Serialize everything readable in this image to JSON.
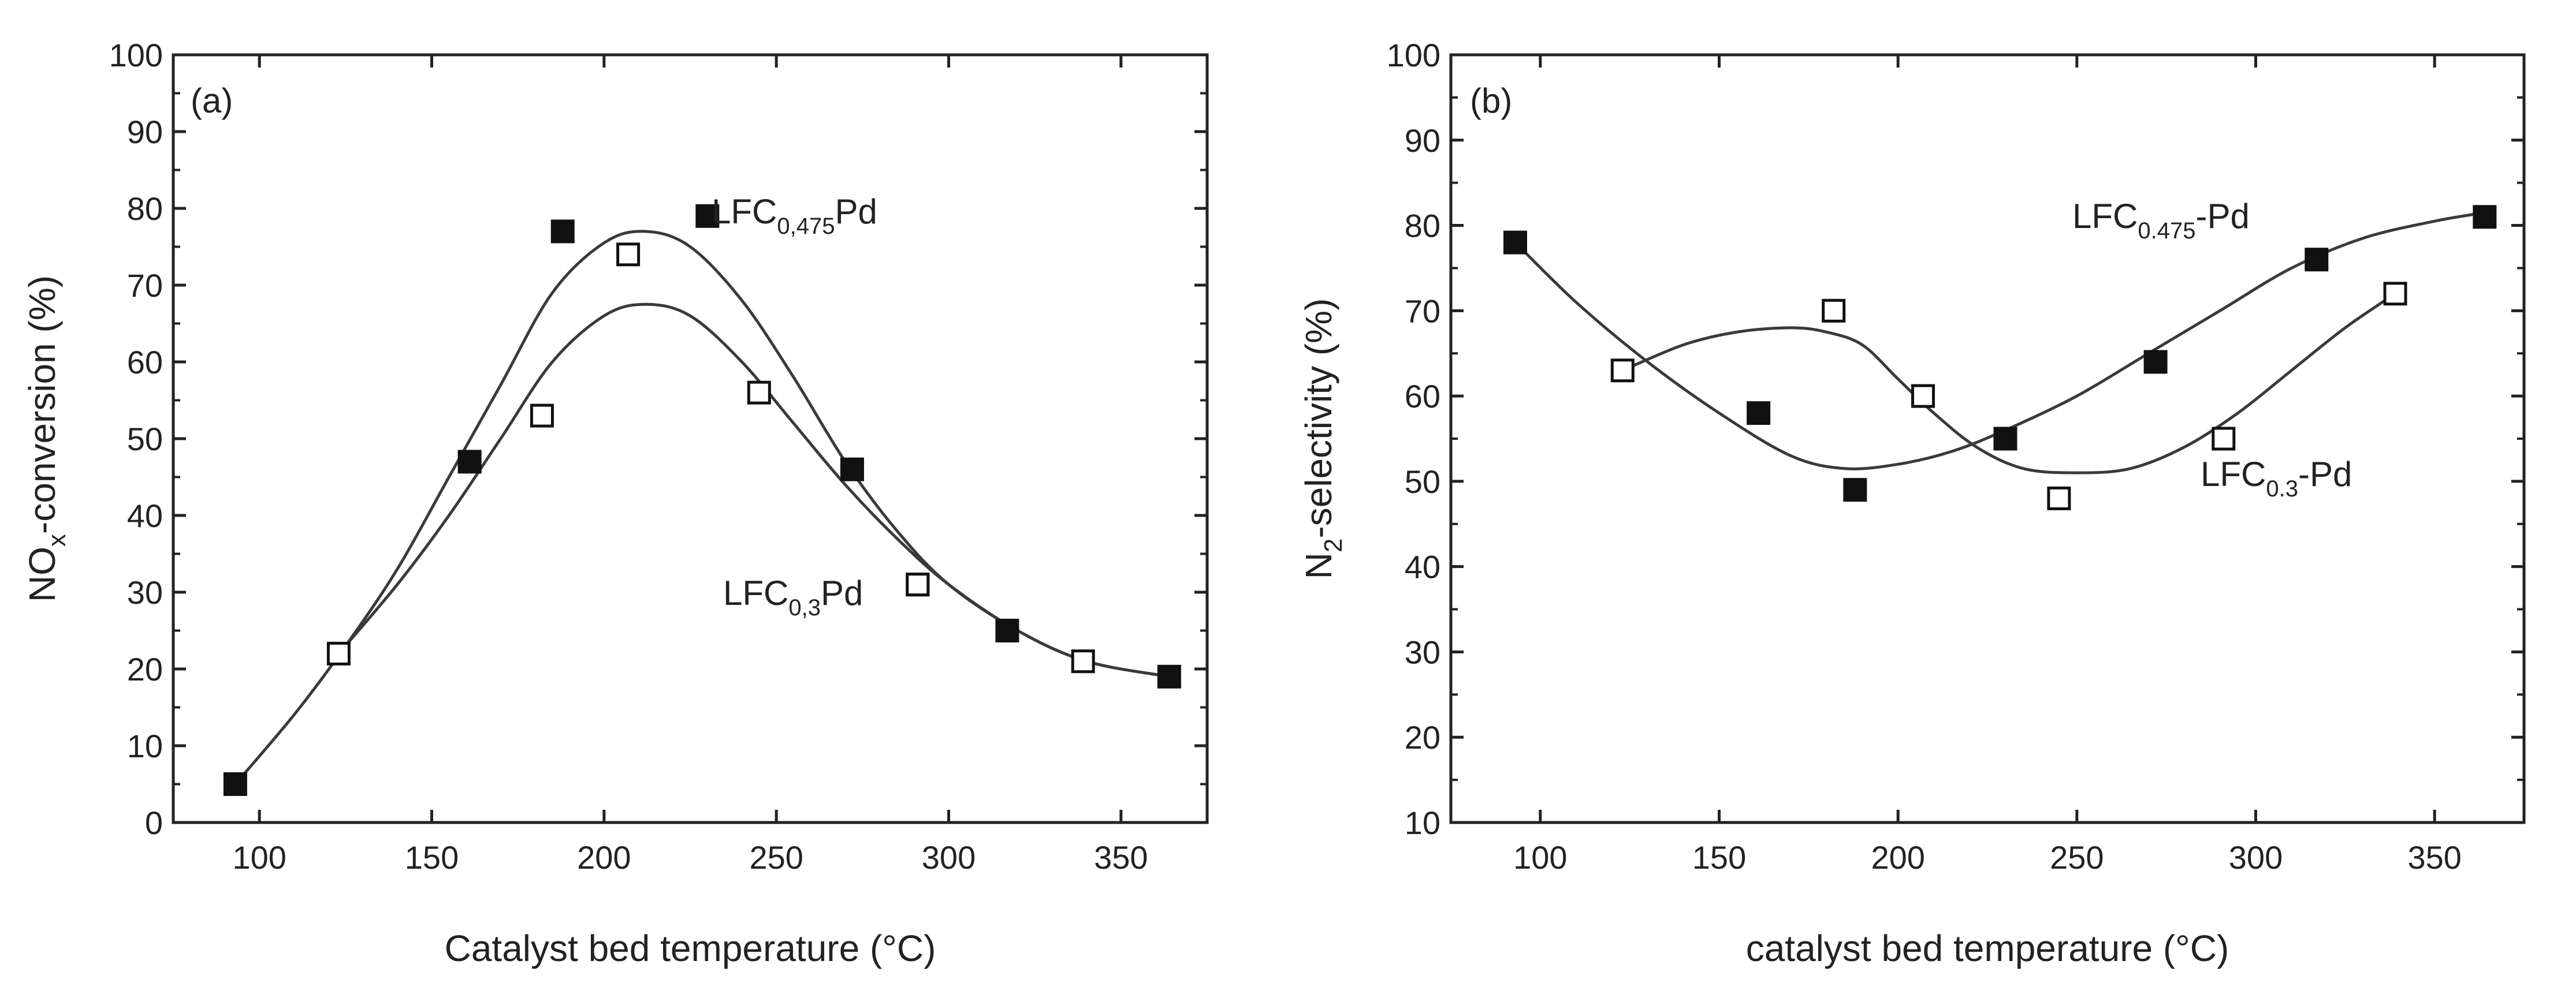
{
  "chart_data": [
    {
      "panel": "a",
      "type": "scatter",
      "panel_label": "(a)",
      "xlabel": "Catalyst bed temperature (°C)",
      "ylabel": {
        "main": "NO",
        "sub": "x",
        "rest": "-conversion (%)"
      },
      "xlim": [
        75,
        375
      ],
      "ylim": [
        0,
        100
      ],
      "xticks": [
        100,
        150,
        200,
        250,
        300,
        350
      ],
      "yticks": [
        0,
        10,
        20,
        30,
        40,
        50,
        60,
        70,
        80,
        90,
        100
      ],
      "series": [
        {
          "name": "LFC0,475Pd",
          "marker": "filled-square",
          "x": [
            93,
            161,
            188,
            272,
            317,
            364
          ],
          "y": [
            5,
            47,
            77,
            46,
            25,
            19
          ],
          "fit_x": [
            93,
            110,
            125,
            140,
            155,
            170,
            185,
            200,
            212,
            225,
            240,
            255,
            270,
            285,
            300,
            320,
            340,
            364
          ],
          "fit_y": [
            5,
            14,
            23,
            33,
            45,
            57,
            69,
            75.5,
            77,
            75,
            68,
            58,
            47,
            38,
            31,
            25,
            21,
            19
          ],
          "label": {
            "main": "LFC",
            "sub": "0,475",
            "rest": "Pd"
          },
          "legend_marker": {
            "x": 230,
            "y": 79
          }
        },
        {
          "name": "LFC0,3Pd",
          "marker": "open-square",
          "x": [
            123,
            182,
            207,
            245,
            291,
            339
          ],
          "y": [
            22,
            53,
            74,
            56,
            31,
            21
          ],
          "fit_x": [
            123,
            140,
            155,
            170,
            185,
            200,
            212,
            225,
            240,
            255,
            270,
            285,
            300,
            320,
            340,
            364
          ],
          "fit_y": [
            22,
            31,
            40,
            50,
            60,
            66,
            67.5,
            66,
            60,
            52,
            44,
            37,
            31,
            25,
            21,
            19
          ],
          "label": {
            "main": "LFC",
            "sub": "0,3",
            "rest": "Pd"
          },
          "legend_marker": {
            "x": 291,
            "y": 31
          }
        }
      ]
    },
    {
      "panel": "b",
      "type": "scatter",
      "panel_label": "(b)",
      "xlabel": "catalyst bed temperature (°C)",
      "ylabel": {
        "main": "N",
        "sub": "2",
        "rest": "-selectivity (%)"
      },
      "xlim": [
        75,
        375
      ],
      "ylim": [
        10,
        100
      ],
      "xticks": [
        100,
        150,
        200,
        250,
        300,
        350
      ],
      "yticks": [
        10,
        20,
        30,
        40,
        50,
        60,
        70,
        80,
        90,
        100
      ],
      "series": [
        {
          "name": "LFC0.475-Pd",
          "marker": "filled-square",
          "x": [
            93,
            161,
            188,
            230,
            272,
            317,
            364
          ],
          "y": [
            78,
            58,
            49,
            55,
            64,
            76,
            81
          ],
          "fit_x": [
            93,
            110,
            130,
            150,
            170,
            185,
            200,
            215,
            230,
            250,
            270,
            290,
            310,
            330,
            350,
            364
          ],
          "fit_y": [
            78,
            71,
            64,
            58,
            53,
            51.5,
            52,
            53.5,
            56,
            60,
            65,
            70,
            75,
            78.5,
            80.5,
            81.5
          ],
          "label": {
            "main": "LFC",
            "sub": "0.475",
            "rest": "-Pd"
          }
        },
        {
          "name": "LFC0.3-Pd",
          "marker": "open-square",
          "x": [
            123,
            182,
            207,
            245,
            291,
            339
          ],
          "y": [
            63,
            70,
            60,
            48,
            55,
            72
          ],
          "fit_x": [
            123,
            140,
            155,
            170,
            180,
            190,
            200,
            210,
            222,
            235,
            250,
            265,
            280,
            295,
            310,
            325,
            339
          ],
          "fit_y": [
            63,
            66,
            67.5,
            68,
            67.5,
            66,
            62,
            58,
            54,
            51.5,
            51,
            51.5,
            54,
            58,
            63,
            68,
            72
          ],
          "label": {
            "main": "LFC",
            "sub": "0.3",
            "rest": "-Pd"
          }
        }
      ]
    }
  ]
}
